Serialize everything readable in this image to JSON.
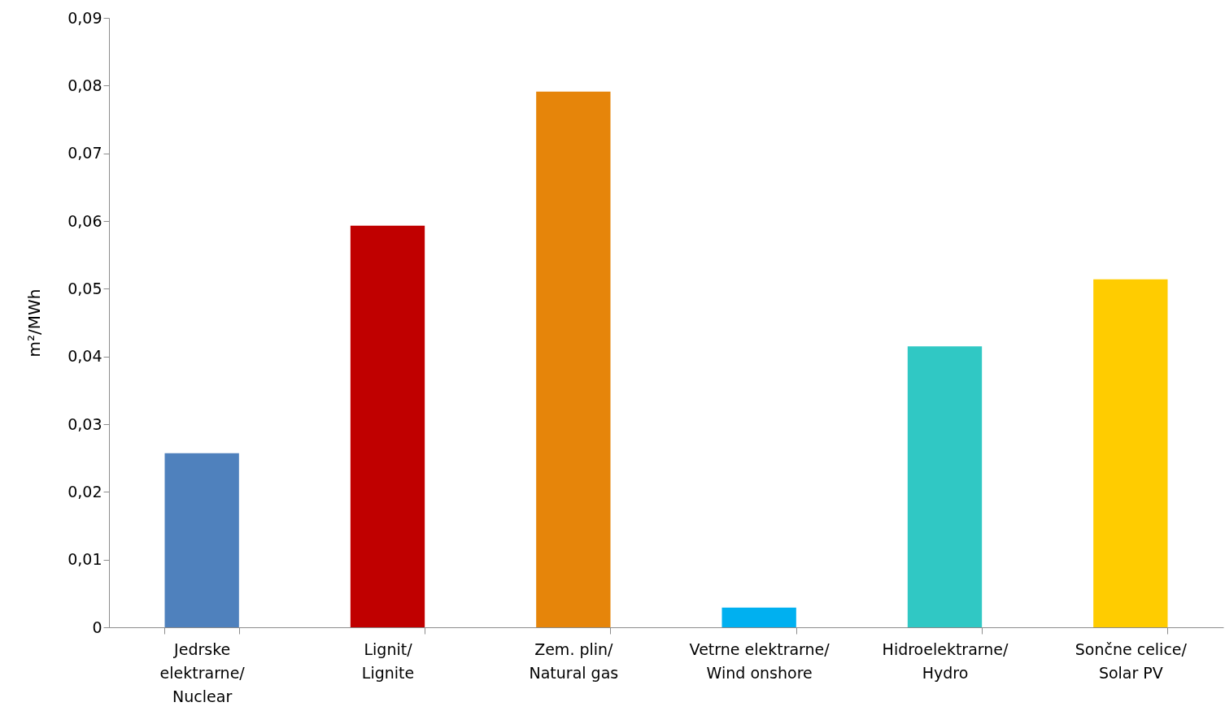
{
  "chart_data": {
    "type": "bar",
    "ylabel": "m²/MWh",
    "categories": [
      "Jedrske\nelektrarne/\nNuclear",
      "Lignit/\nLignite",
      "Zem. plin/\nNatural gas",
      "Vetrne elektrarne/\nWind onshore",
      "Hidroelektrarne/\nHydro",
      "Sončne celice/\nSolar PV"
    ],
    "values": [
      0.0257,
      0.0593,
      0.0791,
      0.0029,
      0.0415,
      0.0514
    ],
    "colors": [
      "#4f81bd",
      "#c00000",
      "#e6850a",
      "#00b0f0",
      "#30c8c4",
      "#ffcc00"
    ],
    "ylim": [
      0,
      0.09
    ],
    "yticks": [
      0,
      {
        "value": 0.01,
        "label": "0,01"
      },
      {
        "value": 0.02,
        "label": "0,02"
      },
      {
        "value": 0.03,
        "label": "0,03"
      },
      {
        "value": 0.04,
        "label": "0,04"
      },
      {
        "value": 0.05,
        "label": "0,05"
      },
      {
        "value": 0.06,
        "label": "0,06"
      },
      {
        "value": 0.07,
        "label": "0,07"
      },
      {
        "value": 0.08,
        "label": "0,08"
      },
      {
        "value": 0.09,
        "label": "0,09"
      }
    ],
    "grid": false,
    "legend": false
  }
}
